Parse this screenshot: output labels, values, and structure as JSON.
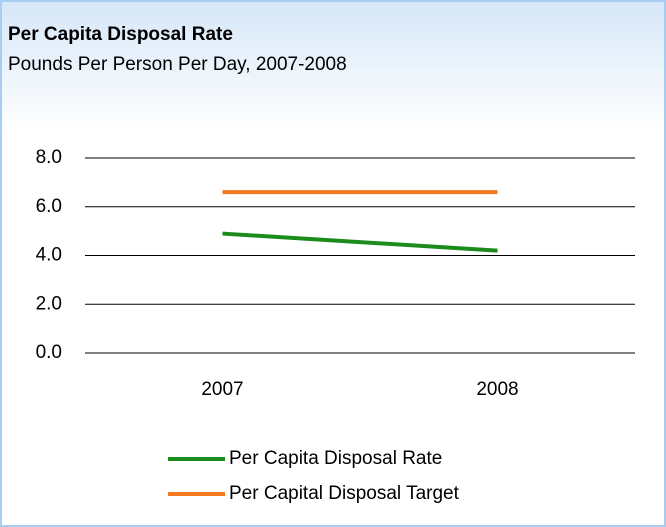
{
  "chart_data": {
    "type": "line",
    "title": "Per Capita Disposal Rate",
    "subtitle": "Pounds Per Person Per Day, 2007-2008",
    "categories": [
      "2007",
      "2008"
    ],
    "series": [
      {
        "name": "Per Capita Disposal Rate",
        "color": "#1b8c1b",
        "values": [
          4.9,
          4.2
        ]
      },
      {
        "name": "Per Capital Disposal Target",
        "color": "#f47a1f",
        "values": [
          6.6,
          6.6
        ]
      }
    ],
    "ylim": [
      0,
      8
    ],
    "yticks": [
      {
        "value": 0,
        "label": "0.0"
      },
      {
        "value": 2,
        "label": "2.0"
      },
      {
        "value": 4,
        "label": "4.0"
      },
      {
        "value": 6,
        "label": "6.0"
      },
      {
        "value": 8,
        "label": "8.0"
      }
    ],
    "grid": true,
    "legend": "bottom"
  }
}
